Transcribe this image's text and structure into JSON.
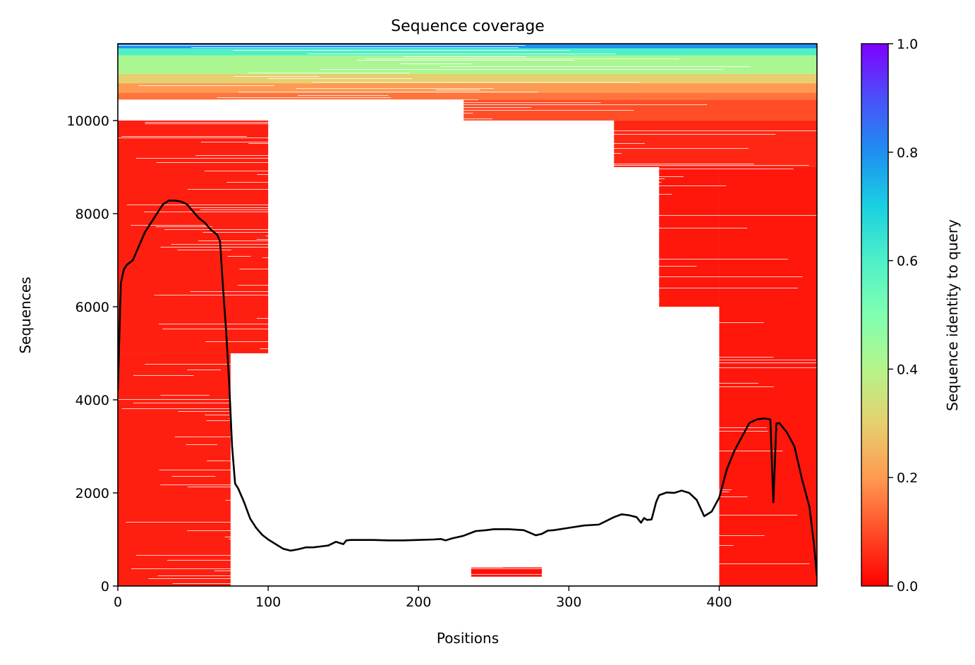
{
  "chart_data": {
    "type": "heatmap",
    "title": "Sequence coverage",
    "xlabel": "Positions",
    "ylabel": "Sequences",
    "xlim": [
      0,
      465
    ],
    "ylim": [
      0,
      11650
    ],
    "x_ticks": [
      0,
      100,
      200,
      300,
      400
    ],
    "y_ticks": [
      0,
      2000,
      4000,
      6000,
      8000,
      10000
    ],
    "colorbar": {
      "label": "Sequence identity to query",
      "range": [
        0,
        1
      ],
      "ticks": [
        0.0,
        0.2,
        0.4,
        0.6,
        0.8,
        1.0
      ],
      "tick_labels": [
        "0.0",
        "0.2",
        "0.4",
        "0.6",
        "0.8",
        "1.0"
      ],
      "colormap": "rainbow_r"
    },
    "coverage_regions": [
      {
        "seq_range": [
          11550,
          11650
        ],
        "pos_range": [
          0,
          465
        ],
        "identity": 0.8
      },
      {
        "seq_range": [
          11400,
          11550
        ],
        "pos_range": [
          0,
          465
        ],
        "identity": 0.6
      },
      {
        "seq_range": [
          11000,
          11400
        ],
        "pos_range": [
          0,
          465
        ],
        "identity": 0.42
      },
      {
        "seq_range": [
          10800,
          11000
        ],
        "pos_range": [
          0,
          465
        ],
        "identity": 0.3
      },
      {
        "seq_range": [
          10600,
          10800
        ],
        "pos_range": [
          0,
          465
        ],
        "identity": 0.2
      },
      {
        "seq_range": [
          10450,
          10600
        ],
        "pos_range": [
          0,
          465
        ],
        "identity": 0.15
      },
      {
        "seq_range": [
          10000,
          10450
        ],
        "pos_range": [
          230,
          465
        ],
        "identity": 0.1
      },
      {
        "seq_range": [
          9000,
          10000
        ],
        "pos_range": [
          330,
          465
        ],
        "identity": 0.05
      },
      {
        "seq_range": [
          5000,
          10000
        ],
        "pos_range": [
          0,
          100
        ],
        "identity": 0.04
      },
      {
        "seq_range": [
          0,
          5000
        ],
        "pos_range": [
          0,
          75
        ],
        "identity": 0.04
      },
      {
        "seq_range": [
          0,
          9000
        ],
        "pos_range": [
          400,
          465
        ],
        "identity": 0.03
      },
      {
        "seq_range": [
          6000,
          9000
        ],
        "pos_range": [
          360,
          400
        ],
        "identity": 0.03
      },
      {
        "seq_range": [
          200,
          400
        ],
        "pos_range": [
          235,
          282
        ],
        "identity": 0.02
      }
    ],
    "series": [
      {
        "type": "line",
        "x": [
          0,
          2,
          4,
          6,
          10,
          14,
          18,
          22,
          26,
          30,
          34,
          38,
          42,
          46,
          50,
          54,
          58,
          62,
          64,
          66,
          68,
          70,
          72,
          74,
          76,
          78,
          80,
          84,
          88,
          92,
          96,
          100,
          105,
          110,
          115,
          120,
          125,
          130,
          135,
          140,
          145,
          150,
          152,
          155,
          160,
          170,
          180,
          190,
          200,
          210,
          215,
          218,
          222,
          230,
          238,
          245,
          250,
          260,
          270,
          278,
          282,
          286,
          290,
          300,
          310,
          320,
          330,
          335,
          340,
          345,
          348,
          350,
          352,
          355,
          358,
          360,
          365,
          370,
          375,
          380,
          385,
          390,
          395,
          400,
          405,
          410,
          415,
          420,
          425,
          430,
          434,
          436,
          438,
          440,
          445,
          450,
          455,
          460,
          463,
          465
        ],
        "values": [
          4200,
          6500,
          6800,
          6900,
          7000,
          7300,
          7600,
          7800,
          8000,
          8200,
          8280,
          8280,
          8260,
          8200,
          8050,
          7900,
          7800,
          7650,
          7600,
          7550,
          7400,
          6400,
          5500,
          4400,
          3000,
          2200,
          2100,
          1800,
          1450,
          1250,
          1100,
          1000,
          900,
          800,
          760,
          790,
          830,
          830,
          850,
          870,
          950,
          900,
          980,
          990,
          990,
          990,
          980,
          980,
          990,
          1000,
          1010,
          980,
          1020,
          1080,
          1180,
          1200,
          1220,
          1220,
          1200,
          1090,
          1120,
          1190,
          1200,
          1250,
          1300,
          1320,
          1480,
          1540,
          1520,
          1480,
          1360,
          1460,
          1420,
          1430,
          1800,
          1950,
          2010,
          2000,
          2050,
          2000,
          1850,
          1500,
          1600,
          1900,
          2500,
          2900,
          3200,
          3500,
          3580,
          3600,
          3580,
          1800,
          3490,
          3500,
          3300,
          3000,
          2300,
          1700,
          900,
          200
        ]
      }
    ]
  }
}
